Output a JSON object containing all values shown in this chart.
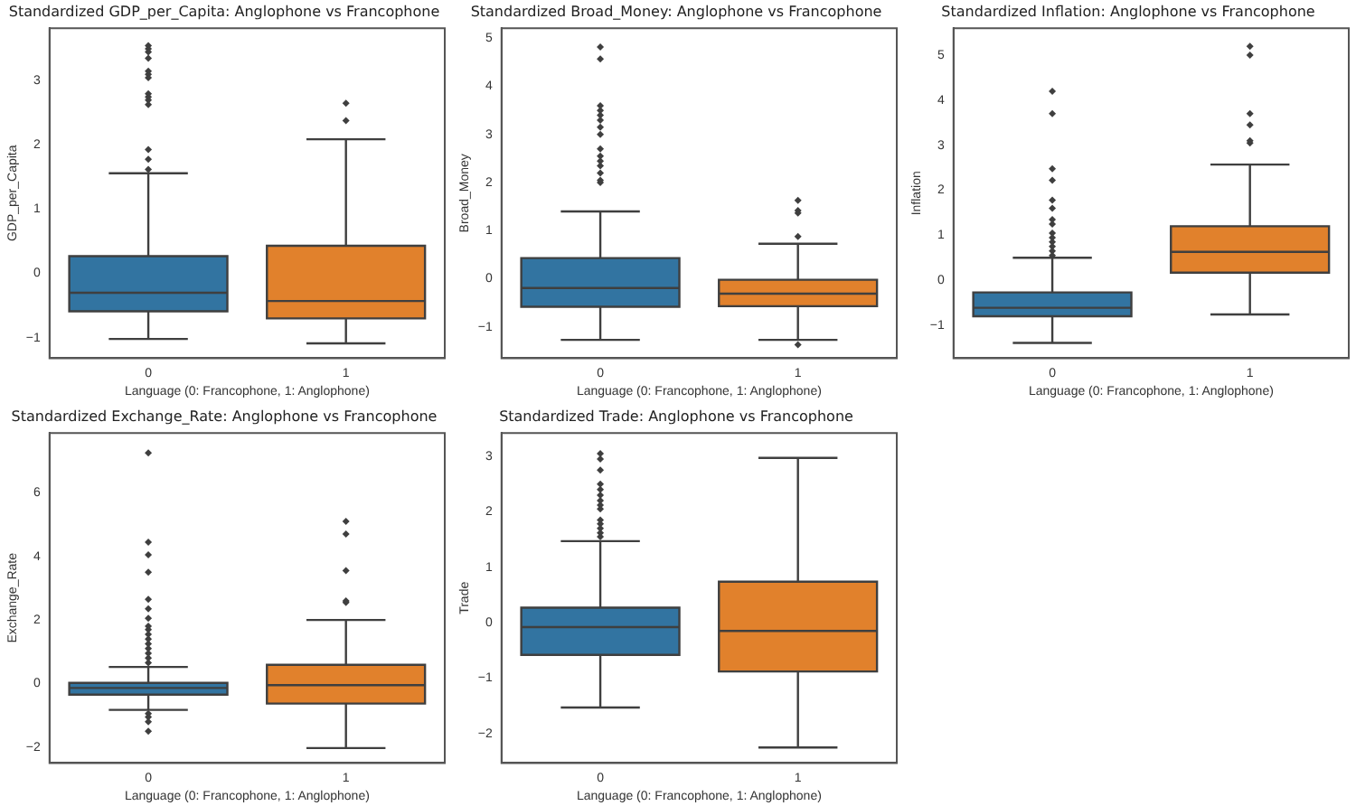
{
  "chart_data": [
    {
      "type": "box",
      "title": "Standardized GDP_per_Capita: Anglophone vs Francophone",
      "xlabel": "Language (0: Francophone, 1: Anglophone)",
      "ylabel": "GDP_per_Capita",
      "categories": [
        "0",
        "1"
      ],
      "colors": [
        "#3274a1",
        "#e1812c"
      ],
      "ylim": [
        -1.32,
        3.82
      ],
      "yticks": [
        -1,
        0,
        1,
        2,
        3
      ],
      "boxes": [
        {
          "low": -1.02,
          "q1": -0.59,
          "median": -0.3,
          "q3": 0.27,
          "high": 1.56,
          "outliers": [
            1.62,
            1.78,
            1.93,
            2.63,
            2.7,
            2.75,
            2.8,
            3.05,
            3.1,
            3.15,
            3.35,
            3.45,
            3.5,
            3.55
          ]
        },
        {
          "low": -1.09,
          "q1": -0.7,
          "median": -0.43,
          "q3": 0.43,
          "high": 2.09,
          "outliers": [
            2.38,
            2.65
          ]
        }
      ]
    },
    {
      "type": "box",
      "title": "Standardized Broad_Money: Anglophone vs Francophone",
      "xlabel": "Language (0: Francophone, 1: Anglophone)",
      "ylabel": "Broad_Money",
      "categories": [
        "0",
        "1"
      ],
      "colors": [
        "#3274a1",
        "#e1812c"
      ],
      "ylim": [
        -1.65,
        5.21
      ],
      "yticks": [
        -1,
        0,
        1,
        2,
        3,
        4,
        5
      ],
      "boxes": [
        {
          "low": -1.27,
          "q1": -0.58,
          "median": -0.19,
          "q3": 0.43,
          "high": 1.4,
          "outliers": [
            2.0,
            2.05,
            2.2,
            2.35,
            2.45,
            2.55,
            2.7,
            3.0,
            3.15,
            3.3,
            3.4,
            3.5,
            3.6,
            4.57,
            4.82
          ]
        },
        {
          "low": -1.27,
          "q1": -0.57,
          "median": -0.31,
          "q3": -0.02,
          "high": 0.73,
          "outliers": [
            0.88,
            1.37,
            1.42,
            1.63,
            -1.37
          ]
        }
      ]
    },
    {
      "type": "box",
      "title": "Standardized Inflation: Anglophone vs Francophone",
      "xlabel": "Language (0: Francophone, 1: Anglophone)",
      "ylabel": "Inflation",
      "categories": [
        "0",
        "1"
      ],
      "colors": [
        "#3274a1",
        "#e1812c"
      ],
      "ylim": [
        -1.73,
        5.6
      ],
      "yticks": [
        -1,
        0,
        1,
        2,
        3,
        4,
        5
      ],
      "boxes": [
        {
          "low": -1.39,
          "q1": -0.8,
          "median": -0.61,
          "q3": -0.27,
          "high": 0.5,
          "outliers": [
            0.55,
            0.65,
            0.75,
            0.85,
            0.95,
            1.05,
            1.25,
            1.35,
            1.6,
            1.78,
            2.22,
            2.48,
            3.7,
            4.2
          ]
        },
        {
          "low": -0.76,
          "q1": 0.17,
          "median": 0.63,
          "q3": 1.2,
          "high": 2.57,
          "outliers": [
            3.05,
            3.1,
            3.45,
            3.7,
            5.0,
            5.2
          ]
        }
      ]
    },
    {
      "type": "box",
      "title": "Standardized Exchange_Rate: Anglophone vs Francophone",
      "xlabel": "Language (0: Francophone, 1: Anglophone)",
      "ylabel": "Exchange_Rate",
      "categories": [
        "0",
        "1"
      ],
      "colors": [
        "#3274a1",
        "#e1812c"
      ],
      "ylim": [
        -2.5,
        7.88
      ],
      "yticks": [
        -2,
        0,
        2,
        4,
        6
      ],
      "boxes": [
        {
          "low": -0.83,
          "q1": -0.35,
          "median": -0.14,
          "q3": 0.02,
          "high": 0.52,
          "outliers": [
            0.65,
            0.8,
            0.95,
            1.1,
            1.25,
            1.4,
            1.55,
            1.7,
            1.8,
            2.05,
            2.35,
            2.65,
            3.5,
            4.05,
            4.45,
            7.25,
            -0.95,
            -1.05,
            -1.2,
            -1.5
          ]
        },
        {
          "low": -2.03,
          "q1": -0.63,
          "median": -0.05,
          "q3": 0.59,
          "high": 2.0,
          "outliers": [
            2.55,
            2.6,
            3.55,
            4.7,
            5.1
          ]
        }
      ]
    },
    {
      "type": "box",
      "title": "Standardized Trade: Anglophone vs Francophone",
      "xlabel": "Language (0: Francophone, 1: Anglophone)",
      "ylabel": "Trade",
      "categories": [
        "0",
        "1"
      ],
      "colors": [
        "#3274a1",
        "#e1812c"
      ],
      "ylim": [
        -2.53,
        3.42
      ],
      "yticks": [
        -2,
        -1,
        0,
        1,
        2,
        3
      ],
      "boxes": [
        {
          "low": -1.53,
          "q1": -0.58,
          "median": -0.08,
          "q3": 0.27,
          "high": 1.47,
          "outliers": [
            1.55,
            1.62,
            1.7,
            1.78,
            1.85,
            2.05,
            2.12,
            2.2,
            2.3,
            2.4,
            2.5,
            2.75,
            2.95,
            3.05
          ]
        },
        {
          "low": -2.25,
          "q1": -0.88,
          "median": -0.15,
          "q3": 0.74,
          "high": 2.97
        }
      ]
    }
  ]
}
